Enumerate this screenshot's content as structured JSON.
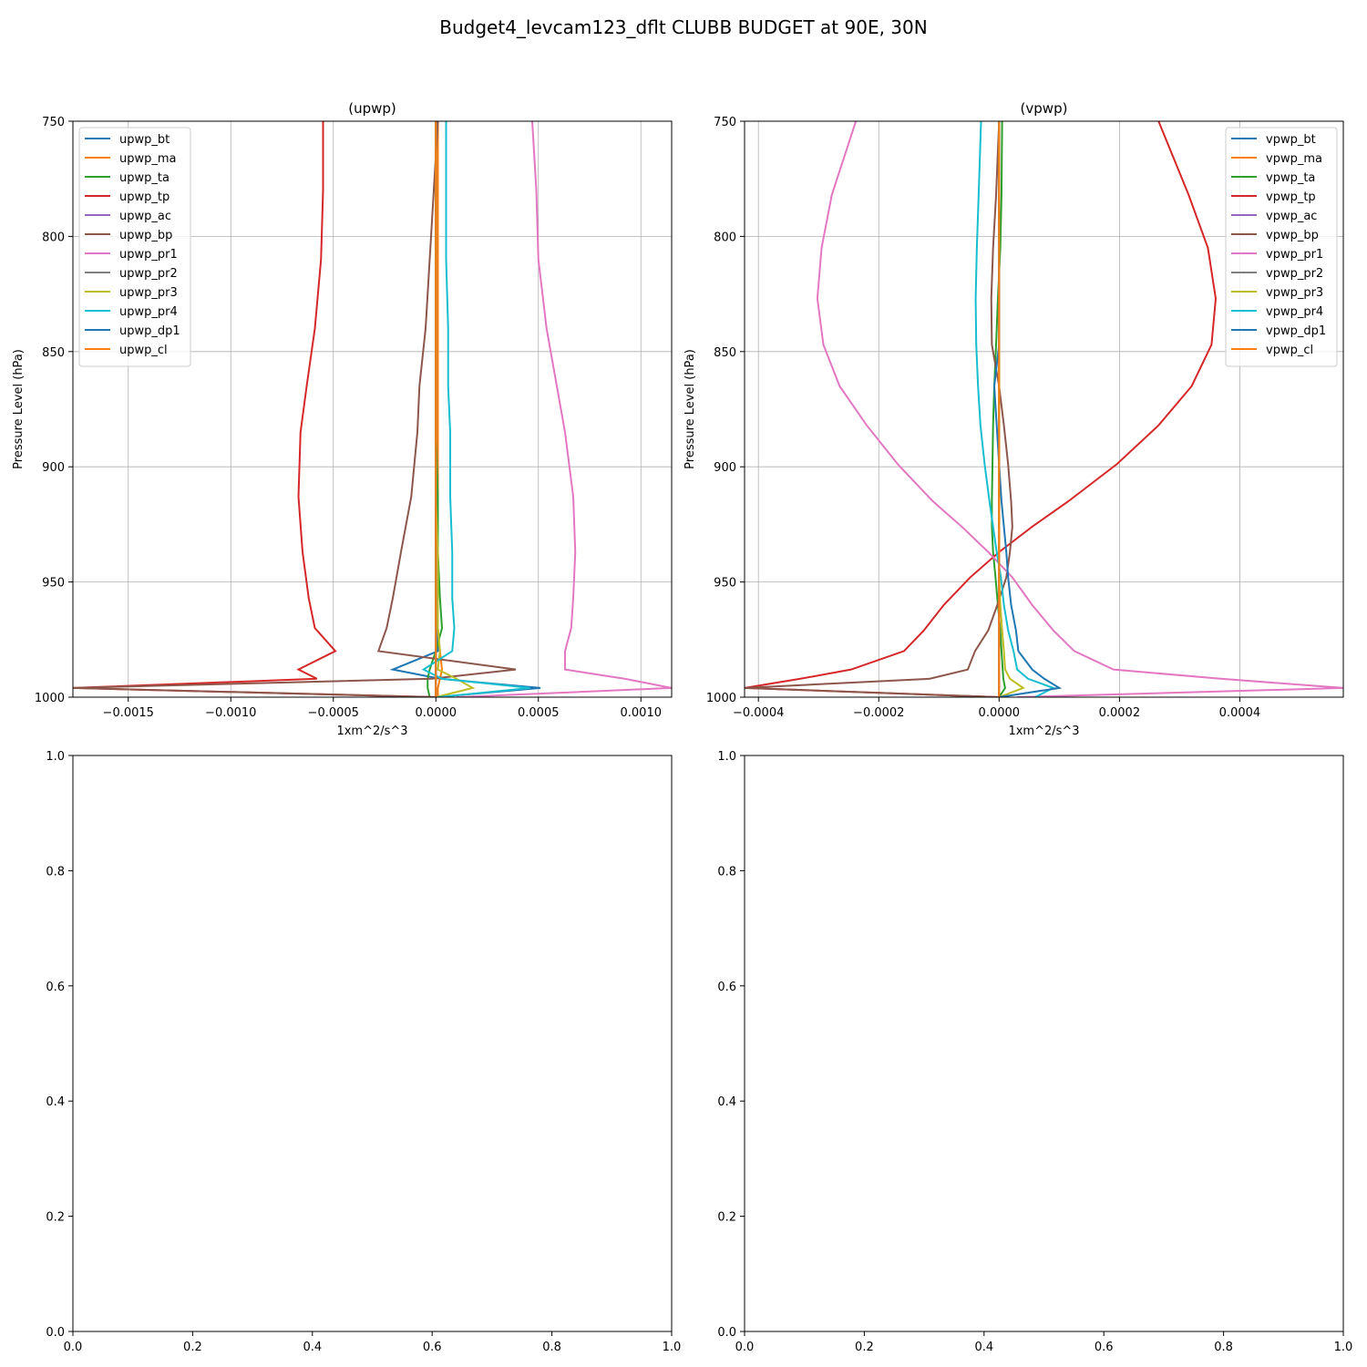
{
  "figure": {
    "title": "Budget4_levcam123_dflt CLUBB BUDGET at 90E, 30N"
  },
  "colors": {
    "bt": "#1f77b4",
    "ma": "#ff7f0e",
    "ta": "#2ca02c",
    "tp": "#d62728",
    "ac": "#9467bd",
    "bp": "#8c564b",
    "pr1": "#e377c2",
    "pr2": "#7f7f7f",
    "pr3": "#bcbd22",
    "pr4": "#17becf",
    "dp1": "#1f77b4",
    "cl": "#ff7f0e",
    "grid": "#b0b0b0",
    "axis": "#000000"
  },
  "chart_data": [
    {
      "type": "line",
      "title": "(upwp)",
      "xlabel": "1xm^2/s^3",
      "ylabel": "Pressure Level (hPa)",
      "xlim": [
        -0.00177,
        0.00115
      ],
      "ylim": [
        1000,
        750
      ],
      "xticks": [
        -0.0015,
        -0.001,
        -0.0005,
        0.0,
        0.0005,
        0.001
      ],
      "xtick_labels": [
        "−0.0015",
        "−0.0010",
        "−0.0005",
        "0.0000",
        "0.0005",
        "0.0010"
      ],
      "yticks": [
        750,
        800,
        850,
        900,
        950,
        1000
      ],
      "ytick_labels": [
        "750",
        "800",
        "850",
        "900",
        "950",
        "1000"
      ],
      "grid": true,
      "legend_position": "upper-left",
      "y": [
        750,
        780,
        810,
        840,
        865,
        885,
        913,
        937,
        957,
        970,
        980,
        988,
        992,
        996,
        1000
      ],
      "series": [
        {
          "name": "upwp_bt",
          "color_key": "bt",
          "x": [
            0.0,
            0.0,
            0.0,
            0.0,
            0.0,
            0.0,
            0.0,
            0.0,
            0.0,
            1e-05,
            1e-05,
            -0.00021,
            2e-05,
            0.00051,
            0.0
          ]
        },
        {
          "name": "upwp_ma",
          "color_key": "ma",
          "x": [
            1e-05,
            1e-05,
            1e-05,
            1e-05,
            1e-05,
            1e-05,
            1e-05,
            1e-05,
            1e-05,
            1e-05,
            2e-05,
            3e-05,
            2e-05,
            1e-05,
            1e-05
          ]
        },
        {
          "name": "upwp_ta",
          "color_key": "ta",
          "x": [
            0.0,
            0.0,
            0.0,
            0.0,
            0.0,
            0.0,
            1e-05,
            1e-05,
            2e-05,
            3e-05,
            0.0,
            -3e-05,
            -4e-05,
            -4e-05,
            -3e-05
          ]
        },
        {
          "name": "upwp_tp",
          "color_key": "tp",
          "x": [
            -0.00055,
            -0.00055,
            -0.00056,
            -0.00059,
            -0.00063,
            -0.00066,
            -0.00067,
            -0.00065,
            -0.00062,
            -0.00059,
            -0.00049,
            -0.00067,
            -0.00058,
            -0.00177,
            0.0
          ]
        },
        {
          "name": "upwp_ac",
          "color_key": "ac",
          "x": [
            0.0,
            0.0,
            0.0,
            0.0,
            0.0,
            0.0,
            0.0,
            0.0,
            0.0,
            0.0,
            0.0,
            0.0,
            0.0,
            0.0,
            0.0
          ]
        },
        {
          "name": "upwp_bp",
          "color_key": "bp",
          "x": [
            1e-05,
            -1e-05,
            -3e-05,
            -5e-05,
            -8e-05,
            -9e-05,
            -0.00012,
            -0.00017,
            -0.00021,
            -0.00024,
            -0.00028,
            0.00039,
            -2e-05,
            -0.00177,
            0.0
          ]
        },
        {
          "name": "upwp_pr1",
          "color_key": "pr1",
          "x": [
            0.00047,
            0.00049,
            0.0005,
            0.00054,
            0.00059,
            0.00063,
            0.00067,
            0.00068,
            0.00067,
            0.00066,
            0.00063,
            0.00063,
            0.00092,
            0.00115,
            0.0001
          ]
        },
        {
          "name": "upwp_pr2",
          "color_key": "pr2",
          "x": [
            0.0,
            0.0,
            0.0,
            0.0,
            0.0,
            0.0,
            0.0,
            0.0,
            0.0,
            0.0,
            0.0,
            0.0,
            0.0,
            0.0,
            0.0
          ]
        },
        {
          "name": "upwp_pr3",
          "color_key": "pr3",
          "x": [
            0.0,
            0.0,
            0.0,
            0.0,
            0.0,
            0.0,
            0.0,
            1e-05,
            1e-05,
            1e-05,
            2e-05,
            1e-05,
            0.0001,
            0.00018,
            0.0
          ]
        },
        {
          "name": "upwp_pr4",
          "color_key": "pr4",
          "x": [
            5e-05,
            5e-05,
            5e-05,
            6e-05,
            6e-05,
            7e-05,
            7e-05,
            8e-05,
            8e-05,
            9e-05,
            8e-05,
            -6e-05,
            3e-05,
            0.00046,
            1e-05
          ]
        },
        {
          "name": "upwp_dp1",
          "color_key": "dp1",
          "x": [
            0.0,
            0.0,
            0.0,
            0.0,
            0.0,
            0.0,
            0.0,
            0.0,
            0.0,
            0.0,
            0.0,
            0.0,
            0.0,
            0.0,
            0.0
          ]
        },
        {
          "name": "upwp_cl",
          "color_key": "cl",
          "x": [
            0.0,
            0.0,
            0.0,
            0.0,
            0.0,
            0.0,
            0.0,
            0.0,
            0.0,
            0.0,
            0.0,
            0.0,
            0.0,
            0.0,
            0.0
          ]
        }
      ]
    },
    {
      "type": "line",
      "title": "(vpwp)",
      "xlabel": "1xm^2/s^3",
      "ylabel": "Pressure Level (hPa)",
      "xlim": [
        -0.000423,
        0.000572
      ],
      "ylim": [
        1000,
        750
      ],
      "xticks": [
        -0.0004,
        -0.0002,
        0.0,
        0.0002,
        0.0004
      ],
      "xtick_labels": [
        "−0.0004",
        "−0.0002",
        "0.0000",
        "0.0002",
        "0.0004"
      ],
      "yticks": [
        750,
        800,
        850,
        900,
        950,
        1000
      ],
      "ytick_labels": [
        "750",
        "800",
        "850",
        "900",
        "950",
        "1000"
      ],
      "grid": true,
      "legend_position": "upper-right",
      "y": [
        750,
        782,
        805,
        827,
        847,
        865,
        882,
        899,
        915,
        926,
        937,
        948,
        960,
        971,
        980,
        988,
        992,
        996,
        1000
      ],
      "series": [
        {
          "name": "vpwp_bt",
          "color_key": "bt",
          "x": [
            0.0,
            0.0,
            0.0,
            0.0,
            0.0,
            0.0,
            0.0,
            0.0,
            0.0,
            0.0,
            0.0,
            0.0,
            0.0,
            0.0,
            0.0,
            0.0,
            0.0,
            0.0,
            0.0
          ]
        },
        {
          "name": "vpwp_ma",
          "color_key": "ma",
          "x": [
            0.0,
            0.0,
            0.0,
            0.0,
            0.0,
            0.0,
            0.0,
            0.0,
            0.0,
            0.0,
            0.0,
            0.0,
            0.0,
            0.0,
            0.0,
            0.0,
            0.0,
            0.0,
            0.0
          ]
        },
        {
          "name": "vpwp_ta",
          "color_key": "ta",
          "x": [
            5e-06,
            4e-06,
            2e-06,
            -2e-06,
            -5e-06,
            -8e-06,
            -1e-05,
            -1.1e-05,
            -1.2e-05,
            -1.2e-05,
            -1e-05,
            -6e-06,
            -2e-06,
            2e-06,
            4e-06,
            6e-06,
            7e-06,
            1e-05,
            0.0
          ]
        },
        {
          "name": "vpwp_tp",
          "color_key": "tp",
          "x": [
            0.000265,
            0.000315,
            0.000347,
            0.00036,
            0.000353,
            0.00032,
            0.000265,
            0.000195,
            0.000115,
            5.5e-05,
            0.0,
            -4.8e-05,
            -9.2e-05,
            -0.000125,
            -0.000158,
            -0.000246,
            -0.00033,
            -0.000423,
            0.0
          ]
        },
        {
          "name": "vpwp_ac",
          "color_key": "ac",
          "x": [
            0.0,
            0.0,
            0.0,
            0.0,
            0.0,
            0.0,
            0.0,
            0.0,
            0.0,
            0.0,
            0.0,
            0.0,
            0.0,
            0.0,
            0.0,
            0.0,
            0.0,
            0.0,
            0.0
          ]
        },
        {
          "name": "vpwp_bp",
          "color_key": "bp",
          "x": [
            0.0,
            -5e-06,
            -1e-05,
            -1.3e-05,
            -1.2e-05,
            0.0,
            8e-06,
            1.5e-05,
            2e-05,
            2.2e-05,
            1.8e-05,
            1.2e-05,
            -3e-06,
            -1.8e-05,
            -4e-05,
            -5.2e-05,
            -0.000115,
            -0.000423,
            0.0
          ]
        },
        {
          "name": "vpwp_pr1",
          "color_key": "pr1",
          "x": [
            -0.000238,
            -0.000278,
            -0.000295,
            -0.000302,
            -0.000292,
            -0.000265,
            -0.00022,
            -0.000168,
            -0.00011,
            -6.2e-05,
            -1.8e-05,
            2.2e-05,
            5.5e-05,
            9e-05,
            0.000125,
            0.00019,
            0.000368,
            0.000572,
            3e-05
          ]
        },
        {
          "name": "vpwp_pr2",
          "color_key": "pr2",
          "x": [
            0.0,
            0.0,
            0.0,
            0.0,
            0.0,
            0.0,
            0.0,
            0.0,
            0.0,
            0.0,
            0.0,
            0.0,
            0.0,
            0.0,
            0.0,
            0.0,
            0.0,
            0.0,
            0.0
          ]
        },
        {
          "name": "vpwp_pr3",
          "color_key": "pr3",
          "x": [
            0.0,
            0.0,
            0.0,
            0.0,
            0.0,
            0.0,
            0.0,
            0.0,
            0.0,
            0.0,
            0.0,
            0.0,
            2e-06,
            5e-06,
            8e-06,
            1e-05,
            1.8e-05,
            4e-05,
            0.0
          ]
        },
        {
          "name": "vpwp_pr4",
          "color_key": "pr4",
          "x": [
            -3e-05,
            -3.4e-05,
            -3.7e-05,
            -3.9e-05,
            -3.8e-05,
            -3.5e-05,
            -3.1e-05,
            -2.4e-05,
            -1.6e-05,
            -1e-05,
            -4e-06,
            3e-06,
            8e-06,
            1.5e-05,
            2.4e-05,
            3e-05,
            4.8e-05,
            9e-05,
            6e-05
          ]
        },
        {
          "name": "vpwp_dp1",
          "color_key": "dp1",
          "x": [
            0.0,
            0.0,
            0.0,
            0.0,
            0.0,
            -8e-06,
            -4e-06,
            0.0,
            4e-06,
            8e-06,
            1.2e-05,
            1.5e-05,
            2e-05,
            2.8e-05,
            3.2e-05,
            5.5e-05,
            7.5e-05,
            0.0001,
            0.0
          ]
        },
        {
          "name": "vpwp_cl",
          "color_key": "cl",
          "x": [
            0.0,
            0.0,
            0.0,
            0.0,
            0.0,
            0.0,
            0.0,
            0.0,
            0.0,
            0.0,
            0.0,
            0.0,
            0.0,
            0.0,
            0.0,
            0.0,
            0.0,
            0.0,
            0.0
          ]
        }
      ]
    },
    {
      "type": "line",
      "title": "",
      "xlim": [
        0,
        1
      ],
      "ylim": [
        0,
        1
      ],
      "xticks": [
        0.0,
        0.2,
        0.4,
        0.6,
        0.8,
        1.0
      ],
      "xtick_labels": [
        "0.0",
        "0.2",
        "0.4",
        "0.6",
        "0.8",
        "1.0"
      ],
      "yticks": [
        0.0,
        0.2,
        0.4,
        0.6,
        0.8,
        1.0
      ],
      "ytick_labels": [
        "0.0",
        "0.2",
        "0.4",
        "0.6",
        "0.8",
        "1.0"
      ],
      "grid": false,
      "series": []
    },
    {
      "type": "line",
      "title": "",
      "xlim": [
        0,
        1
      ],
      "ylim": [
        0,
        1
      ],
      "xticks": [
        0.0,
        0.2,
        0.4,
        0.6,
        0.8,
        1.0
      ],
      "xtick_labels": [
        "0.0",
        "0.2",
        "0.4",
        "0.6",
        "0.8",
        "1.0"
      ],
      "yticks": [
        0.0,
        0.2,
        0.4,
        0.6,
        0.8,
        1.0
      ],
      "ytick_labels": [
        "0.0",
        "0.2",
        "0.4",
        "0.6",
        "0.8",
        "1.0"
      ],
      "grid": false,
      "series": []
    }
  ]
}
